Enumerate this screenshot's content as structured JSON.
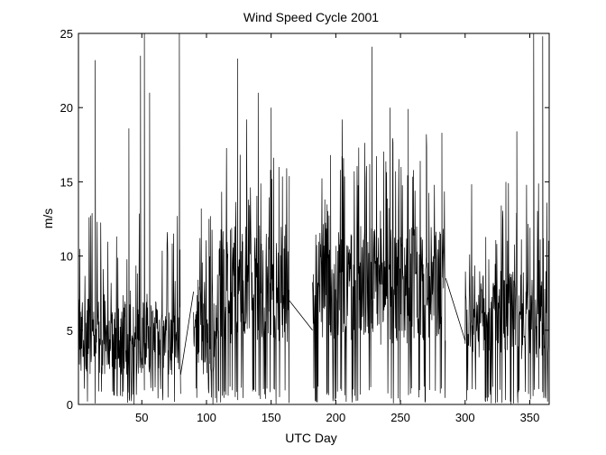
{
  "chart_data": {
    "type": "line",
    "title": "Wind Speed Cycle 2001",
    "xlabel": "UTC Day",
    "ylabel": "m/s",
    "xlim": [
      1,
      365
    ],
    "ylim": [
      0,
      25
    ],
    "xticks": [
      50,
      100,
      150,
      200,
      250,
      300,
      350
    ],
    "yticks": [
      0,
      5,
      10,
      15,
      20,
      25
    ],
    "grid": false,
    "line_color": "#000000",
    "segments": [
      {
        "x_start": 1,
        "x_end": 80,
        "y_min": 0,
        "y_max": 25,
        "y_typical": [
          2,
          7
        ],
        "spikes": [
          [
            14,
            23.2
          ],
          [
            40,
            18.6
          ],
          [
            49,
            23.5
          ],
          [
            52,
            25
          ],
          [
            56,
            21
          ],
          [
            79,
            25
          ]
        ]
      },
      {
        "x_start": 90,
        "x_end": 108,
        "y_min": 0,
        "y_max": 13.4,
        "y_typical": [
          2,
          8
        ],
        "spikes": [
          [
            96,
            13.2
          ],
          [
            102,
            12.5
          ]
        ]
      },
      {
        "x_start": 108,
        "x_end": 164,
        "y_min": 0,
        "y_max": 23.4,
        "y_typical": [
          4,
          12
        ],
        "spikes": [
          [
            124,
            23.3
          ],
          [
            131,
            19.2
          ],
          [
            140,
            21
          ],
          [
            150,
            20
          ],
          [
            156,
            16
          ]
        ]
      },
      {
        "x_start": 182,
        "x_end": 285,
        "y_min": 0,
        "y_max": 24.2,
        "y_typical": [
          4,
          12
        ],
        "spikes": [
          [
            196,
            16.8
          ],
          [
            205,
            19.2
          ],
          [
            228,
            24.1
          ],
          [
            242,
            20
          ],
          [
            256,
            19.9
          ],
          [
            270,
            18.2
          ],
          [
            282,
            18.3
          ]
        ]
      },
      {
        "x_start": 300,
        "x_end": 365,
        "y_min": 0,
        "y_max": 25,
        "y_typical": [
          3,
          9
        ],
        "spikes": [
          [
            340,
            18.4
          ],
          [
            353,
            25
          ],
          [
            360,
            24.8
          ]
        ]
      }
    ],
    "gap_lines": [
      {
        "from": [
          80,
          2
        ],
        "to": [
          90,
          7.6
        ]
      },
      {
        "from": [
          164,
          7.0
        ],
        "to": [
          182,
          5.0
        ]
      },
      {
        "from": [
          285,
          8.5
        ],
        "to": [
          300,
          4.3
        ]
      }
    ]
  }
}
